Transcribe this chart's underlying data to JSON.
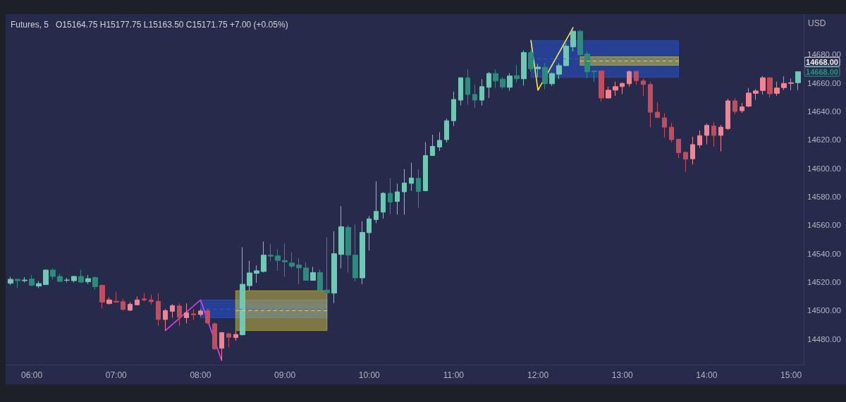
{
  "chart_data": {
    "type": "candlestick",
    "title": "Futures, 5",
    "subtitle": "O15164.75  H15177.75  L15163.50  C15171.75  +7.00 (+0.05%)",
    "ylabel": "USD",
    "xlim": [
      5.69,
      15.15
    ],
    "xticks": [
      {
        "value": 6,
        "label": "06:00"
      },
      {
        "value": 7,
        "label": "07:00"
      },
      {
        "value": 8,
        "label": "08:00"
      },
      {
        "value": 9,
        "label": "09:00"
      },
      {
        "value": 10,
        "label": "10:00"
      },
      {
        "value": 11,
        "label": "11:00"
      },
      {
        "value": 12,
        "label": "12:00"
      },
      {
        "value": 13,
        "label": "13:00"
      },
      {
        "value": 14,
        "label": "14:00"
      },
      {
        "value": 15,
        "label": "15:00"
      }
    ],
    "ylim": [
      14462,
      14708.5
    ],
    "yticks": [
      {
        "value": 14480,
        "label": "14480.00"
      },
      {
        "value": 14500,
        "label": "14500.00"
      },
      {
        "value": 14520,
        "label": "14520.00"
      },
      {
        "value": 14540,
        "label": "14540.00"
      },
      {
        "value": 14560,
        "label": "14560.00"
      },
      {
        "value": 14580,
        "label": "14580.00"
      },
      {
        "value": 14600,
        "label": "14600.00"
      },
      {
        "value": 14620,
        "label": "14620.00"
      },
      {
        "value": 14640,
        "label": "14640.00"
      },
      {
        "value": 14660,
        "label": "14660.00"
      },
      {
        "value": 14680,
        "label": "14680.00"
      }
    ],
    "grid": false,
    "marker": "none",
    "annotations": [
      "14668.00",
      "14668.00"
    ],
    "series": [
      {
        "x": [
          5.75,
          5.8333,
          5.9167,
          6,
          6.0833,
          6.1667,
          6.25,
          6.3333,
          6.4167,
          6.5,
          6.5833,
          6.6667,
          6.75,
          6.8333,
          6.9167,
          7,
          7.0833,
          7.1667,
          7.25,
          7.3333,
          7.4167,
          7.5,
          7.5833,
          7.6667,
          7.75,
          7.8333,
          7.9167,
          8,
          8.0833,
          8.1667,
          8.25,
          8.3333,
          8.4167,
          8.5,
          8.5833,
          8.6667,
          8.75,
          8.8333,
          8.9167,
          9,
          9.0833,
          9.1667,
          9.25,
          9.3333,
          9.4167,
          9.5,
          9.5833,
          9.6667,
          9.75,
          9.8333,
          9.9167,
          10,
          10.0833,
          10.1667,
          10.25,
          10.3333,
          10.4167,
          10.5,
          10.5833,
          10.6667,
          10.75,
          10.8333,
          10.9167,
          11,
          11.0833,
          11.1667,
          11.25,
          11.3333,
          11.4167,
          11.5,
          11.5833,
          11.6667,
          11.75,
          11.8333,
          11.9167,
          12,
          12.0833,
          12.1667,
          12.25,
          12.3333,
          12.4167,
          12.5,
          12.5833,
          12.6667,
          12.75,
          12.8333,
          12.9167,
          13,
          13.0833,
          13.1667,
          13.25,
          13.3333,
          13.4167,
          13.5,
          13.5833,
          13.6667,
          13.75,
          13.8333,
          13.9167,
          14,
          14.0833,
          14.1667,
          14.25,
          14.3333,
          14.4167,
          14.5,
          14.5833,
          14.6667,
          14.75,
          14.8333,
          14.9167,
          15,
          15.0833
        ],
        "ohlc": [
          [
            14519.25,
            14523.75,
            14518,
            14522
          ],
          [
            14522,
            14522.25,
            14516,
            14521
          ],
          [
            14521,
            14523.5,
            14519.75,
            14521.5
          ],
          [
            14522.25,
            14525,
            14517.25,
            14517.75
          ],
          [
            14517.25,
            14520.75,
            14515.75,
            14519
          ],
          [
            14518.25,
            14529,
            14518.25,
            14528.5
          ],
          [
            14528.5,
            14529.75,
            14521.75,
            14524
          ],
          [
            14524,
            14526,
            14520,
            14520.5
          ],
          [
            14521.25,
            14523,
            14519.75,
            14521.5
          ],
          [
            14521,
            14524.5,
            14519.75,
            14524
          ],
          [
            14524,
            14528.75,
            14519.5,
            14520
          ],
          [
            14520.25,
            14525,
            14518.75,
            14522.5
          ],
          [
            14523.25,
            14524,
            14514.75,
            14516.75
          ],
          [
            14517.75,
            14517.75,
            14501.5,
            14506
          ],
          [
            14505,
            14509.25,
            14504.25,
            14507.5
          ],
          [
            14506.5,
            14513.25,
            14505.5,
            14506
          ],
          [
            14506.25,
            14508.25,
            14500,
            14500.75
          ],
          [
            14500.25,
            14506,
            14499.75,
            14504.5
          ],
          [
            14504,
            14510,
            14504,
            14507.5
          ],
          [
            14508.25,
            14512.25,
            14506.5,
            14507.5
          ],
          [
            14507.5,
            14511.25,
            14504.25,
            14506.25
          ],
          [
            14506.5,
            14512.25,
            14489.25,
            14493.75
          ],
          [
            14493.75,
            14501,
            14486.25,
            14500
          ],
          [
            14499.5,
            14504.5,
            14495,
            14503.5
          ],
          [
            14503.25,
            14505,
            14489.25,
            14495.25
          ],
          [
            14495,
            14505,
            14491,
            14498.5
          ],
          [
            14497.75,
            14501,
            14493.25,
            14497
          ],
          [
            14497.25,
            14501,
            14496,
            14499.75
          ],
          [
            14500,
            14501.5,
            14490.5,
            14491.25
          ],
          [
            14490.75,
            14491.5,
            14472.5,
            14473
          ],
          [
            14473.5,
            14484.5,
            14465.25,
            14484.5
          ],
          [
            14483.75,
            14484.5,
            14474.25,
            14481.25
          ],
          [
            14481,
            14485.75,
            14478.75,
            14483.25
          ],
          [
            14483,
            14544.5,
            14482.5,
            14518.5
          ],
          [
            14517.5,
            14535,
            14514,
            14526.5
          ],
          [
            14526.25,
            14531.75,
            14519.5,
            14528
          ],
          [
            14527.5,
            14548.5,
            14526.75,
            14539
          ],
          [
            14539,
            14547,
            14534.5,
            14538.25
          ],
          [
            14538.5,
            14543,
            14528,
            14535.25
          ],
          [
            14535.25,
            14547.25,
            14523.75,
            14534.25
          ],
          [
            14533.5,
            14541,
            14529.5,
            14531.25
          ],
          [
            14532,
            14536.75,
            14518.5,
            14530
          ],
          [
            14530,
            14534,
            14521.25,
            14521.25
          ],
          [
            14521.25,
            14530.75,
            14521.25,
            14526.75
          ],
          [
            14526.75,
            14529,
            14512.5,
            14514.25
          ],
          [
            14514.5,
            14551.5,
            14512,
            14512.5
          ],
          [
            14512.25,
            14555.75,
            14505.25,
            14540
          ],
          [
            14539.5,
            14573.5,
            14529.75,
            14559
          ],
          [
            14558.5,
            14560,
            14526.75,
            14539
          ],
          [
            14539,
            14560.5,
            14520.5,
            14523
          ],
          [
            14523,
            14562.75,
            14518.5,
            14555
          ],
          [
            14554.75,
            14566.5,
            14542.25,
            14564.5
          ],
          [
            14564,
            14591,
            14561.5,
            14569.75
          ],
          [
            14569.25,
            14583.25,
            14564.75,
            14582.5
          ],
          [
            14582.5,
            14593,
            14567.5,
            14576.25
          ],
          [
            14576.75,
            14589.25,
            14567.5,
            14583.5
          ],
          [
            14583.5,
            14599.5,
            14567.5,
            14589.75
          ],
          [
            14589.5,
            14604,
            14584.25,
            14593.25
          ],
          [
            14593,
            14599.5,
            14572.25,
            14583.75
          ],
          [
            14584.25,
            14618.5,
            14584.25,
            14609
          ],
          [
            14609,
            14623.75,
            14609,
            14615.5
          ],
          [
            14615,
            14625.5,
            14612.25,
            14619.75
          ],
          [
            14620.25,
            14635,
            14618.25,
            14633.5
          ],
          [
            14633.5,
            14654,
            14629.75,
            14648.5
          ],
          [
            14648,
            14664,
            14644.25,
            14663.75
          ],
          [
            14663.75,
            14669.75,
            14644.75,
            14652
          ],
          [
            14652,
            14658.75,
            14642.5,
            14648
          ],
          [
            14648,
            14662.75,
            14644.25,
            14657.5
          ],
          [
            14657,
            14667.75,
            14649.5,
            14666.75
          ],
          [
            14666.75,
            14669.75,
            14656.5,
            14661.5
          ],
          [
            14662.75,
            14664.25,
            14656,
            14657.25
          ],
          [
            14657,
            14667,
            14654.5,
            14665
          ],
          [
            14665.25,
            14672.75,
            14660.25,
            14663
          ],
          [
            14663,
            14683,
            14658.25,
            14681.5
          ],
          [
            14681.5,
            14683,
            14668,
            14670
          ],
          [
            14670,
            14673.5,
            14664,
            14671.25
          ],
          [
            14671,
            14674.25,
            14655.5,
            14659.5
          ],
          [
            14659.5,
            14667.25,
            14658,
            14666.75
          ],
          [
            14666.25,
            14674,
            14662.75,
            14672.25
          ],
          [
            14672.25,
            14688,
            14672.25,
            14686
          ],
          [
            14685.5,
            14697,
            14682.25,
            14696.5
          ],
          [
            14696.5,
            14697.5,
            14679,
            14680
          ],
          [
            14680.5,
            14682.25,
            14663.25,
            14668
          ],
          [
            14668.5,
            14669,
            14660.75,
            14668
          ],
          [
            14668.5,
            14668.5,
            14647,
            14649.5
          ],
          [
            14649.5,
            14657.5,
            14649,
            14655
          ],
          [
            14655,
            14661,
            14651,
            14657.5
          ],
          [
            14657.5,
            14660.5,
            14652.25,
            14659.75
          ],
          [
            14659.5,
            14669,
            14657.5,
            14668
          ],
          [
            14668.25,
            14668.25,
            14659,
            14661.75
          ],
          [
            14661.5,
            14663,
            14651,
            14659
          ],
          [
            14659,
            14660.75,
            14628.75,
            14639.5
          ],
          [
            14639.5,
            14646.5,
            14635.5,
            14635.75
          ],
          [
            14635.5,
            14638.75,
            14621.75,
            14629
          ],
          [
            14629,
            14632,
            14618.5,
            14620.25
          ],
          [
            14620.5,
            14620.75,
            14607.25,
            14611
          ],
          [
            14611.25,
            14611.75,
            14597.5,
            14606.5
          ],
          [
            14606.75,
            14622.25,
            14602.75,
            14616.75
          ],
          [
            14616.5,
            14626.75,
            14614.5,
            14623
          ],
          [
            14623.25,
            14631.5,
            14617,
            14630.25
          ],
          [
            14629.75,
            14632.5,
            14615.25,
            14623.25
          ],
          [
            14623.25,
            14630.5,
            14612,
            14629
          ],
          [
            14628,
            14649,
            14627,
            14647.5
          ],
          [
            14647.5,
            14649.5,
            14638,
            14640
          ],
          [
            14640.5,
            14646,
            14639,
            14643.25
          ],
          [
            14643.75,
            14656.5,
            14643,
            14653
          ],
          [
            14652.75,
            14655.75,
            14648.25,
            14654.5
          ],
          [
            14654.75,
            14665,
            14652,
            14663.75
          ],
          [
            14663.75,
            14664,
            14650,
            14652.5
          ],
          [
            14652.75,
            14661,
            14651,
            14656.5
          ],
          [
            14656.75,
            14664.75,
            14655,
            14659.75
          ],
          [
            14659.75,
            14663.25,
            14655,
            14660.25
          ],
          [
            14660.25,
            14668,
            14655,
            14668
          ]
        ],
        "colors": [
          "#70c8b4",
          "#2e8a7a",
          "#70c8b4",
          "#2e8a7a",
          "#70c8b4",
          "#70c8b4",
          "#2e8a7a",
          "#2e8a7a",
          "#70c8b4",
          "#70c8b4",
          "#2e8a7a",
          "#70c8b4",
          "#2e8a7a",
          "#c74b5a",
          "#f7828f",
          "#c74b5a",
          "#c74b5a",
          "#f7828f",
          "#f7828f",
          "#c74b5a",
          "#c74b5a",
          "#c74b5a",
          "#f7828f",
          "#f7828f",
          "#c74b5a",
          "#f7828f",
          "#c74b5a",
          "#f7828f",
          "#c74b5a",
          "#c74b5a",
          "#f7828f",
          "#c74b5a",
          "#f7828f",
          "#70c8b4",
          "#70c8b4",
          "#70c8b4",
          "#70c8b4",
          "#2e8a7a",
          "#2e8a7a",
          "#2e8a7a",
          "#2e8a7a",
          "#2e8a7a",
          "#2e8a7a",
          "#70c8b4",
          "#2e8a7a",
          "#2e8a7a",
          "#70c8b4",
          "#70c8b4",
          "#2e8a7a",
          "#2e8a7a",
          "#70c8b4",
          "#70c8b4",
          "#70c8b4",
          "#70c8b4",
          "#2e8a7a",
          "#70c8b4",
          "#70c8b4",
          "#70c8b4",
          "#2e8a7a",
          "#70c8b4",
          "#70c8b4",
          "#70c8b4",
          "#70c8b4",
          "#70c8b4",
          "#70c8b4",
          "#2e8a7a",
          "#2e8a7a",
          "#70c8b4",
          "#70c8b4",
          "#2e8a7a",
          "#2e8a7a",
          "#70c8b4",
          "#2e8a7a",
          "#70c8b4",
          "#2e8a7a",
          "#70c8b4",
          "#2e8a7a",
          "#70c8b4",
          "#70c8b4",
          "#70c8b4",
          "#70c8b4",
          "#2e8a7a",
          "#2e8a7a",
          "#2e8a7a",
          "#c74b5a",
          "#f7828f",
          "#f7828f",
          "#f7828f",
          "#f7828f",
          "#c74b5a",
          "#c74b5a",
          "#c74b5a",
          "#c74b5a",
          "#c74b5a",
          "#c74b5a",
          "#c74b5a",
          "#c74b5a",
          "#f7828f",
          "#f7828f",
          "#f7828f",
          "#c74b5a",
          "#f7828f",
          "#f7828f",
          "#c74b5a",
          "#f7828f",
          "#f7828f",
          "#f7828f",
          "#f7828f",
          "#c74b5a",
          "#f7828f",
          "#f7828f",
          "#f7828f",
          "#70c8b4"
        ]
      },
      {
        "type": "line",
        "color": "#e040fb",
        "line_style": "solid",
        "x": [
          7.5833,
          8,
          8.25
        ],
        "values": [
          14486,
          14507.5,
          14465
        ]
      },
      {
        "type": "line",
        "color": "#ffeb3b",
        "line_style": "solid",
        "x": [
          11.9167,
          12,
          12.4167
        ],
        "values": [
          14690,
          14655,
          14699
        ]
      },
      {
        "type": "line",
        "color": "#2962ff",
        "line_style": "dashed",
        "x": [
          8,
          9.5
        ],
        "values": [
          14501,
          14501
        ],
        "lower": [
          14495,
          14495
        ],
        "upper": [
          14507.5,
          14507.5
        ]
      },
      {
        "type": "line",
        "color": "#ffeb3b",
        "line_style": "dashed",
        "x": [
          8.4167,
          9.5
        ],
        "values": [
          14500,
          14500
        ],
        "lower": [
          14486,
          14486
        ],
        "upper": [
          14514,
          14514
        ]
      },
      {
        "type": "line",
        "color": "#2962ff",
        "line_style": "dashed",
        "x": [
          11.9167,
          13.6667
        ],
        "values": [
          14677,
          14677
        ],
        "lower": [
          14664,
          14664
        ],
        "upper": [
          14690,
          14690
        ]
      },
      {
        "type": "line",
        "color": "#ffeb3b",
        "line_style": "dashed",
        "x": [
          12.5,
          13.6667
        ],
        "values": [
          14675.5,
          14675.5
        ],
        "lower": [
          14672.5,
          14672.5
        ],
        "upper": [
          14678.5,
          14678.5
        ]
      }
    ]
  }
}
